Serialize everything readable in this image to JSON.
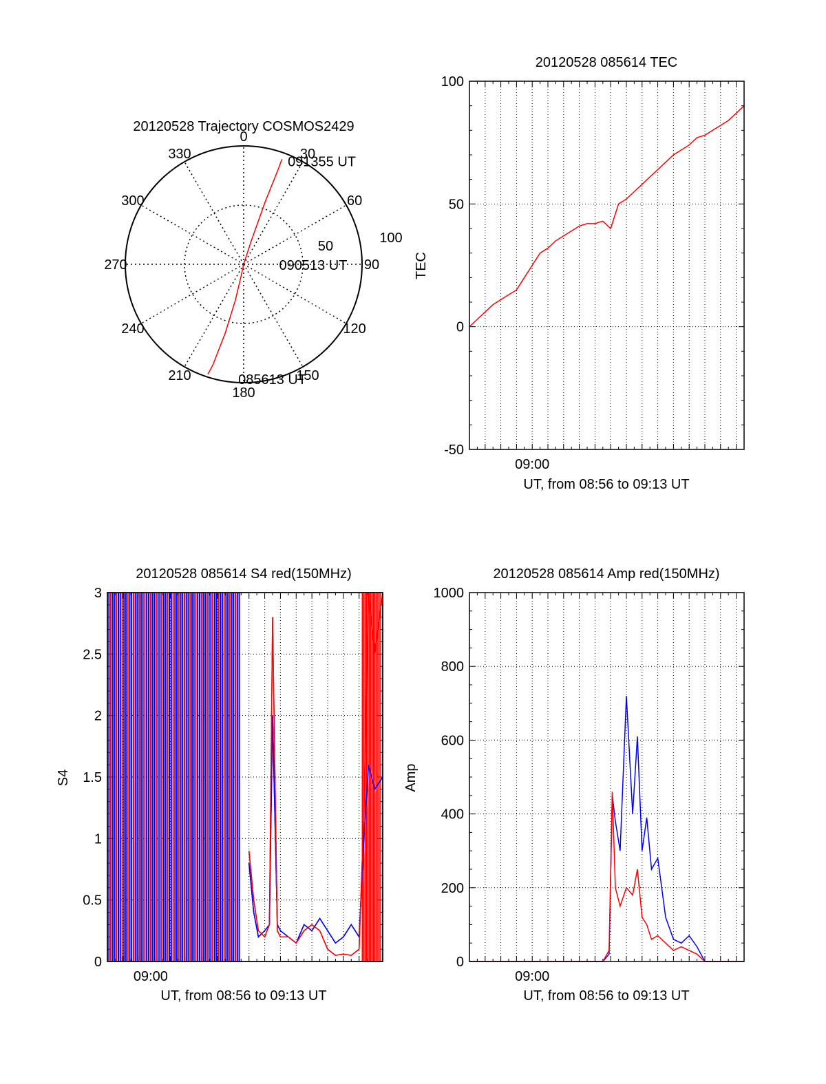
{
  "chart_data": [
    {
      "type": "polar",
      "title": "20120528 Trajectory COSMOS2429",
      "azimuth_labels": [
        "0",
        "30",
        "60",
        "90",
        "120",
        "150",
        "180",
        "210",
        "240",
        "270",
        "300",
        "330"
      ],
      "radial_labels": [
        "50",
        "100"
      ],
      "radial_ticks": [
        50,
        100
      ],
      "rmax": 100,
      "trajectory_color": "#ff0000",
      "trajectory": [
        {
          "az": 0,
          "el": 90
        },
        {
          "az": 192,
          "el": 83
        },
        {
          "az": 193,
          "el": 62
        },
        {
          "az": 195,
          "el": 36
        },
        {
          "az": 197,
          "el": 10
        },
        {
          "az": 198,
          "el": 2
        }
      ],
      "trajectory_upper": [
        {
          "az": 0,
          "el": 90
        },
        {
          "az": 18,
          "el": 72
        },
        {
          "az": 19,
          "el": 40
        },
        {
          "az": 20,
          "el": 12
        },
        {
          "az": 20,
          "el": 5
        }
      ],
      "annotations": [
        {
          "text": "091355 UT",
          "az": 24,
          "el": 5
        },
        {
          "text": "090513 UT",
          "az": 92,
          "el": 62
        },
        {
          "text": "085613 UT",
          "az": 182,
          "el": 2
        }
      ]
    },
    {
      "type": "line",
      "title": "20120528 085614 TEC",
      "xlabel": "UT, from 08:56 to 09:13 UT",
      "ylabel": "TEC",
      "xlim": [
        0,
        17.5
      ],
      "ylim": [
        -50,
        100
      ],
      "yticks": [
        -50,
        0,
        50,
        100
      ],
      "xtick_label": "09:00",
      "xtick_value": 4,
      "grid": true,
      "series": [
        {
          "color": "#ff0000",
          "x": [
            0,
            0.5,
            1,
            1.5,
            2,
            2.5,
            3,
            3.5,
            4,
            4.5,
            5,
            5.5,
            6,
            6.5,
            7,
            7.5,
            8,
            8.5,
            9,
            9.5,
            10,
            10.5,
            11,
            11.5,
            12,
            12.5,
            13,
            13.5,
            14,
            14.5,
            15,
            15.5,
            16,
            16.5,
            17,
            17.5
          ],
          "values": [
            0,
            3,
            6,
            9,
            11,
            13,
            15,
            20,
            25,
            30,
            32,
            35,
            37,
            39,
            41,
            42,
            42,
            43,
            40,
            50,
            52,
            55,
            58,
            61,
            64,
            67,
            70,
            72,
            74,
            77,
            78,
            80,
            82,
            84,
            87,
            90
          ]
        }
      ]
    },
    {
      "type": "line",
      "title": "20120528 085614 S4 red(150MHz)",
      "xlabel": "UT, from 08:56 to 09:13 UT",
      "ylabel": "S4",
      "xlim": [
        0,
        17.5
      ],
      "ylim": [
        0,
        3
      ],
      "yticks": [
        0,
        0.5,
        1,
        1.5,
        2,
        2.5,
        3
      ],
      "ytick_labels": [
        "0",
        "0.5",
        "1",
        "1.5",
        "2",
        "2.5",
        "3"
      ],
      "xtick_label": "09:00",
      "xtick_value": 2.75,
      "grid": true,
      "series": [
        {
          "color": "#0000ff",
          "x": [
            9,
            9.3,
            9.6,
            10,
            10.3,
            10.5,
            10.8,
            11,
            11.5,
            12,
            12.5,
            13,
            13.5,
            14,
            14.5,
            15,
            15.5,
            16,
            16.3,
            16.6,
            17,
            17.5
          ],
          "values": [
            0.8,
            0.4,
            0.2,
            0.25,
            0.3,
            2.0,
            0.3,
            0.25,
            0.2,
            0.15,
            0.3,
            0.25,
            0.35,
            0.25,
            0.15,
            0.2,
            0.3,
            0.2,
            1.0,
            1.6,
            1.4,
            1.5
          ]
        },
        {
          "color": "#ff0000",
          "x": [
            9,
            9.3,
            9.6,
            10,
            10.3,
            10.5,
            10.8,
            11,
            11.5,
            12,
            12.5,
            13,
            13.5,
            14,
            14.5,
            15,
            15.5,
            16,
            16.3,
            16.6,
            17,
            17.5
          ],
          "values": [
            0.9,
            0.5,
            0.25,
            0.2,
            0.3,
            2.8,
            0.25,
            0.2,
            0.2,
            0.15,
            0.25,
            0.3,
            0.25,
            0.1,
            0.05,
            0.06,
            0.05,
            0.1,
            1.2,
            3,
            2.5,
            3
          ]
        }
      ]
    },
    {
      "type": "line",
      "title": "20120528 085614 Amp red(150MHz)",
      "xlabel": "UT, from 08:56 to 09:13 UT",
      "ylabel": "Amp",
      "xlim": [
        0,
        17.5
      ],
      "ylim": [
        0,
        1000
      ],
      "yticks": [
        0,
        200,
        400,
        600,
        800,
        1000
      ],
      "xtick_label": "09:00",
      "xtick_value": 4,
      "grid": true,
      "series": [
        {
          "color": "#0000ff",
          "x": [
            0,
            8.5,
            8.9,
            9.1,
            9.3,
            9.6,
            10,
            10.4,
            10.7,
            11,
            11.3,
            11.6,
            12,
            12.5,
            13,
            13.5,
            14,
            14.5,
            15,
            15.5,
            16,
            17.5
          ],
          "values": [
            0,
            0,
            20,
            450,
            380,
            300,
            720,
            400,
            610,
            300,
            390,
            250,
            280,
            120,
            60,
            50,
            70,
            40,
            0,
            0,
            0,
            0
          ]
        },
        {
          "color": "#ff0000",
          "x": [
            0,
            8.5,
            8.9,
            9.1,
            9.3,
            9.6,
            10,
            10.4,
            10.7,
            11,
            11.3,
            11.6,
            12,
            12.5,
            13,
            13.5,
            14,
            14.5,
            15,
            15.5,
            16,
            17.5
          ],
          "values": [
            0,
            0,
            30,
            460,
            200,
            150,
            200,
            180,
            250,
            120,
            100,
            60,
            70,
            50,
            30,
            40,
            30,
            20,
            0,
            0,
            0,
            0
          ]
        }
      ]
    }
  ]
}
